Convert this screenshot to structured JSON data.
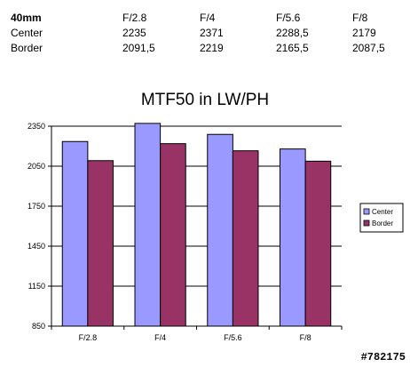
{
  "table": {
    "header": [
      "40mm",
      "F/2.8",
      "F/4",
      "F/5.6",
      "F/8"
    ],
    "rows": [
      [
        "Center",
        "2235",
        "2371",
        "2288,5",
        "2179"
      ],
      [
        "Border",
        "2091,5",
        "2219",
        "2165,5",
        "2087,5"
      ]
    ]
  },
  "chart_data": {
    "type": "bar",
    "title": "MTF50 in LW/PH",
    "categories": [
      "F/2.8",
      "F/4",
      "F/5.6",
      "F/8"
    ],
    "series": [
      {
        "name": "Center",
        "values": [
          2235,
          2371,
          2288.5,
          2179
        ],
        "color": "#9999ff"
      },
      {
        "name": "Border",
        "values": [
          2091.5,
          2219,
          2165.5,
          2087.5
        ],
        "color": "#993366"
      }
    ],
    "ylim": [
      850,
      2350
    ],
    "yticks": [
      850,
      1150,
      1450,
      1750,
      2050,
      2350
    ],
    "grid": true,
    "legend": "right"
  },
  "watermark": "#782175"
}
